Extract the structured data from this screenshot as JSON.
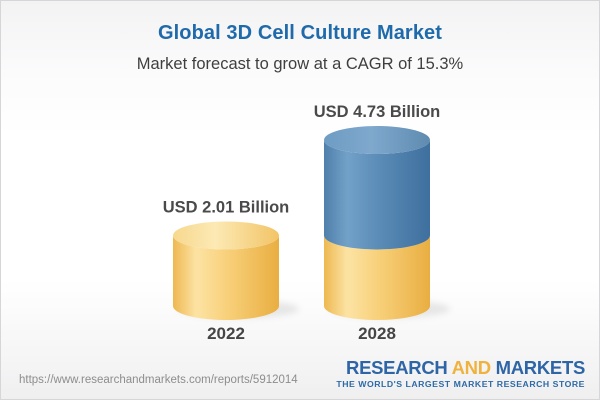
{
  "header": {
    "title": "Global 3D Cell Culture Market",
    "subtitle": "Market forecast to grow at a CAGR of 15.3%"
  },
  "chart_data": {
    "type": "bar",
    "subtype": "3d-cylinder",
    "title": "Global 3D Cell Culture Market",
    "subtitle": "Market forecast to grow at a CAGR of 15.3%",
    "categories": [
      "2022",
      "2028"
    ],
    "values": [
      2.01,
      4.73
    ],
    "value_labels": [
      "USD 2.01 Billion",
      "USD 4.73 Billion"
    ],
    "unit": "USD Billion",
    "cagr_percent": 15.3,
    "axes": "none",
    "legend": "none",
    "note": "2028 cylinder is stacked: lower yellow segment equals the 2022 value, upper blue segment is forecast growth"
  },
  "footer": {
    "url": "https://www.researchandmarkets.com/reports/5912014",
    "logo": {
      "word1": "RESEARCH",
      "word2": "AND",
      "word3": "MARKETS",
      "tagline": "THE WORLD'S LARGEST MARKET RESEARCH STORE"
    }
  },
  "colors": {
    "title_blue": "#1f6aab",
    "subtitle_gray": "#3f3f3f",
    "label_gray": "#4a4a4a",
    "url_gray": "#8d8d8d",
    "logo_blue": "#2d65a6",
    "logo_orange": "#f0b23e",
    "bar_yellow_mid": "#f5cd74",
    "bar_blue_mid": "#5a8bb6",
    "gradients": {
      "gYellowBody": [
        [
          "0",
          "#eeb851"
        ],
        [
          "0.22",
          "#fce3a4"
        ],
        [
          "0.5",
          "#f8d17c"
        ],
        [
          "1",
          "#e9ae41"
        ]
      ],
      "gYellowTop": [
        [
          "0",
          "#f7d88e"
        ],
        [
          "0.4",
          "#fce9b4"
        ],
        [
          "1",
          "#f2c466"
        ]
      ],
      "gBlueBody": [
        [
          "0",
          "#4f80ab"
        ],
        [
          "0.22",
          "#72a1c8"
        ],
        [
          "0.5",
          "#5c8db8"
        ],
        [
          "1",
          "#3e6f9e"
        ]
      ],
      "gBlueTop": [
        [
          "0",
          "#6e9cc3"
        ],
        [
          "0.45",
          "#7fa8cd"
        ],
        [
          "1",
          "#5f8bb0"
        ]
      ]
    }
  }
}
